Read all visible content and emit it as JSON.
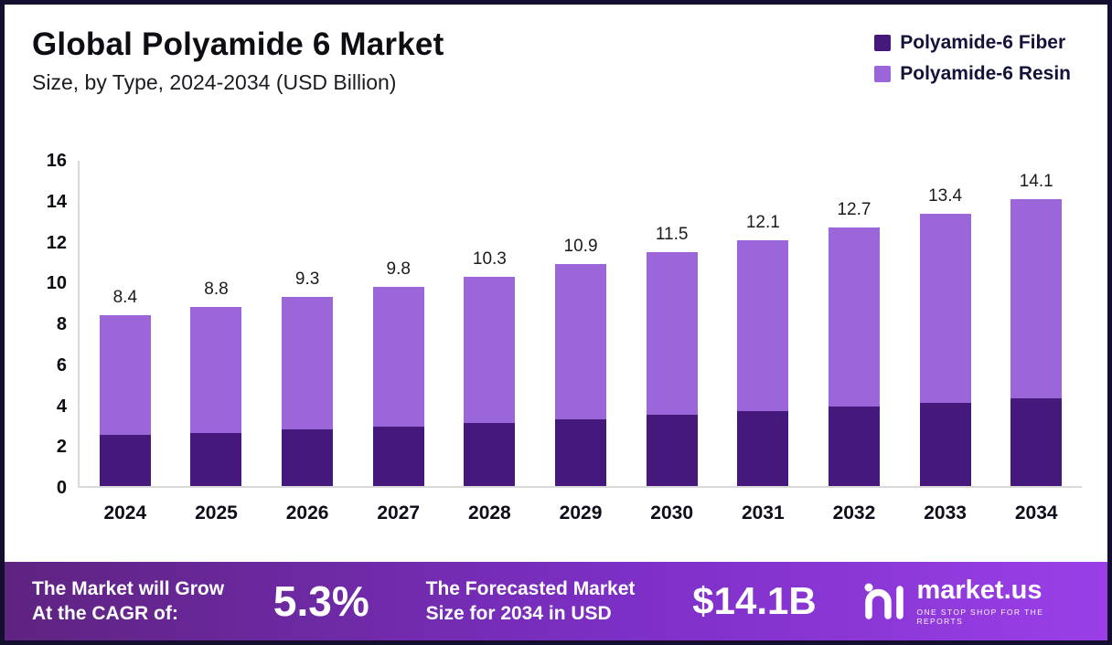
{
  "header": {
    "title": "Global Polyamide 6 Market",
    "subtitle": "Size, by Type, 2024-2034 (USD Billion)"
  },
  "legend": [
    {
      "label": "Polyamide-6 Fiber",
      "color": "#45187c"
    },
    {
      "label": "Polyamide-6 Resin",
      "color": "#9b66d9"
    }
  ],
  "chart_data": {
    "type": "bar",
    "stacked": true,
    "title": "Global Polyamide 6 Market Size, by Type, 2024-2034 (USD Billion)",
    "xlabel": "",
    "ylabel": "",
    "ylim": [
      0,
      16
    ],
    "y_ticks": [
      0,
      2,
      4,
      6,
      8,
      10,
      12,
      14,
      16
    ],
    "grid": false,
    "legend_position": "top-right",
    "categories": [
      "2024",
      "2025",
      "2026",
      "2027",
      "2028",
      "2029",
      "2030",
      "2031",
      "2032",
      "2033",
      "2034"
    ],
    "series": [
      {
        "name": "Polyamide-6 Fiber",
        "color": "#45187c",
        "values": [
          2.5,
          2.6,
          2.8,
          2.9,
          3.1,
          3.3,
          3.5,
          3.7,
          3.9,
          4.1,
          4.3
        ]
      },
      {
        "name": "Polyamide-6 Resin",
        "color": "#9b66d9",
        "values": [
          5.9,
          6.2,
          6.5,
          6.9,
          7.2,
          7.6,
          8.0,
          8.4,
          8.8,
          9.3,
          9.8
        ]
      }
    ],
    "totals": [
      8.4,
      8.8,
      9.3,
      9.8,
      10.3,
      10.9,
      11.5,
      12.1,
      12.7,
      13.4,
      14.1
    ]
  },
  "footer": {
    "cagr_label": "The Market will Grow\nAt the CAGR of:",
    "cagr_value": "5.3%",
    "forecast_label": "The Forecasted Market\nSize for 2034 in USD",
    "forecast_value": "$14.1B",
    "brand": "market.us",
    "brand_tagline": "One Stop Shop for the Reports",
    "logo_icon": "market-us-logo"
  }
}
